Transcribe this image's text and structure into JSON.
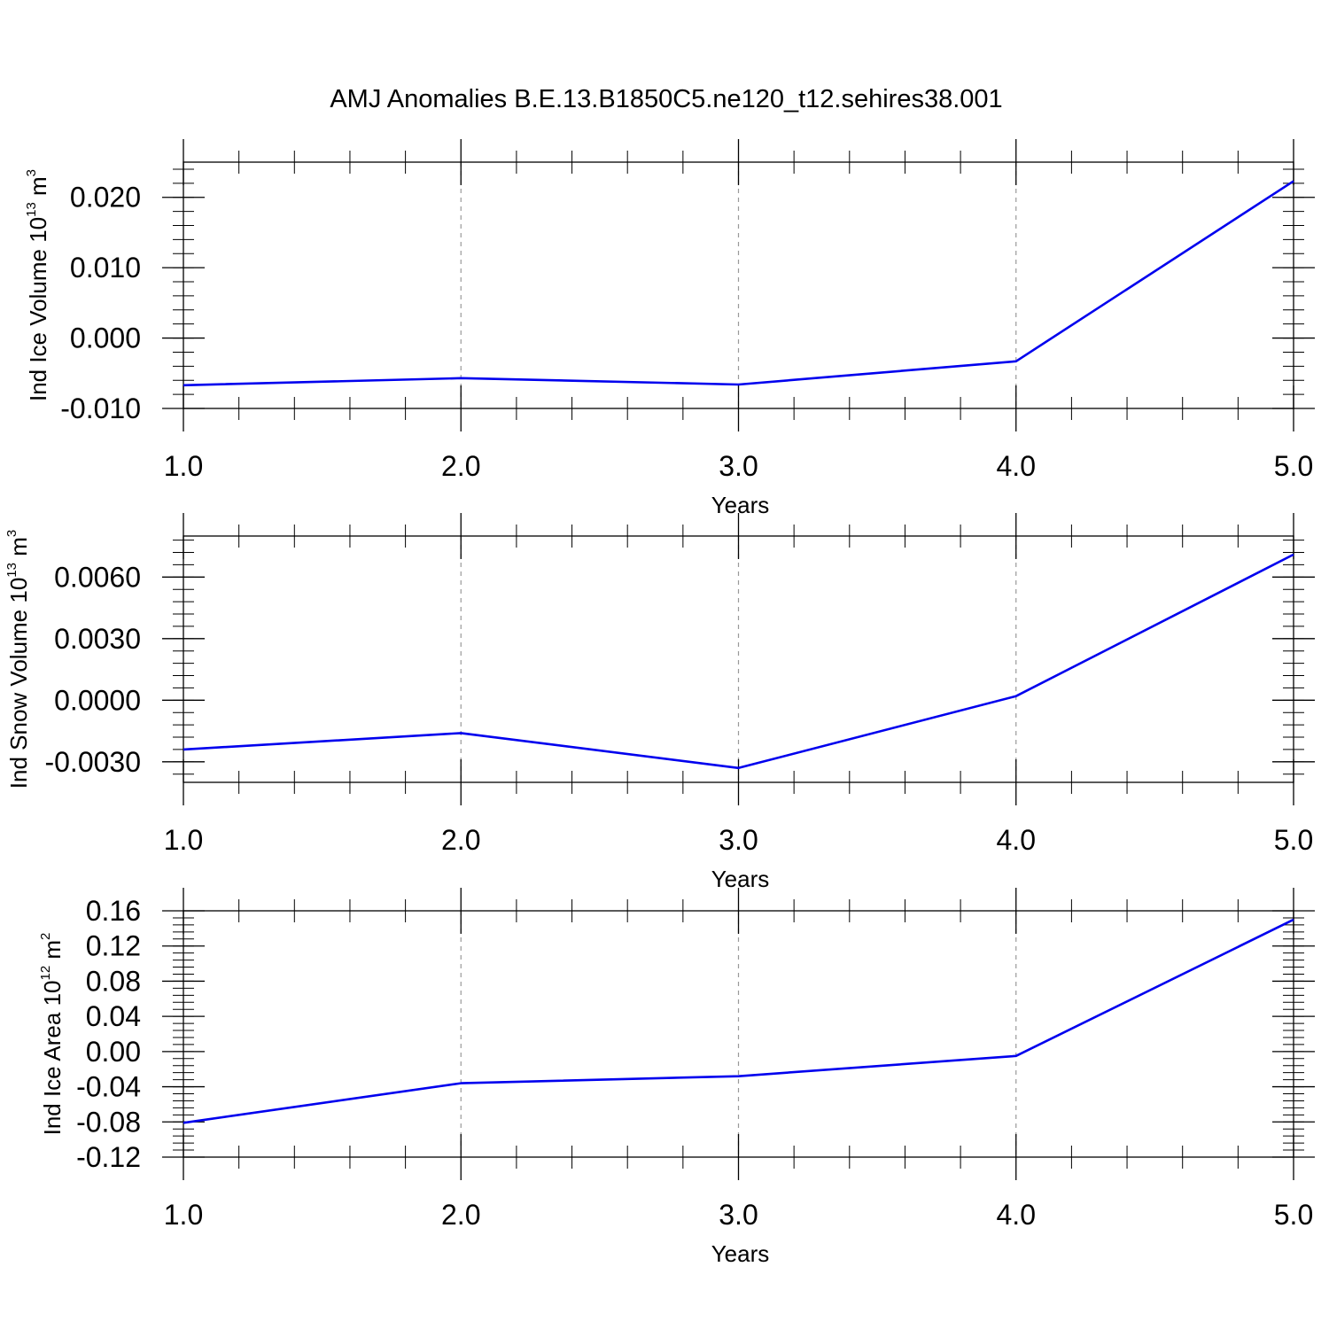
{
  "figure": {
    "title": "AMJ Anomalies B.E.13.B1850C5.ne120_t12.sehires38.001"
  },
  "colors": {
    "line": "#0000ee",
    "frame": "#000000",
    "gridline": "#999999"
  },
  "chart_data": [
    {
      "type": "line",
      "title": "",
      "xlabel": "Years",
      "ylabel": {
        "base": "Ind Ice Volume 10",
        "exp": "13",
        "unit": " m",
        "unit_exp": "3"
      },
      "x": [
        1,
        2,
        3,
        4,
        5
      ],
      "x_ticks": [
        "1.0",
        "2.0",
        "3.0",
        "4.0",
        "5.0"
      ],
      "xlim": [
        1,
        5
      ],
      "ylim": [
        -0.01,
        0.025
      ],
      "y_ticks": [
        {
          "value": -0.01,
          "label": "-0.010"
        },
        {
          "value": 0.0,
          "label": "0.000"
        },
        {
          "value": 0.01,
          "label": "0.010"
        },
        {
          "value": 0.02,
          "label": "0.020"
        }
      ],
      "y_minor_step": 0.002,
      "grid": "vertical-dashed",
      "series": [
        {
          "values": [
            -0.0067,
            -0.0057,
            -0.0066,
            -0.0033,
            0.0223
          ]
        }
      ]
    },
    {
      "type": "line",
      "title": "",
      "xlabel": "Years",
      "ylabel": {
        "base": "Ind Snow Volume 10",
        "exp": "13",
        "unit": " m",
        "unit_exp": "3"
      },
      "x": [
        1,
        2,
        3,
        4,
        5
      ],
      "x_ticks": [
        "1.0",
        "2.0",
        "3.0",
        "4.0",
        "5.0"
      ],
      "xlim": [
        1,
        5
      ],
      "ylim": [
        -0.004,
        0.008
      ],
      "y_ticks": [
        {
          "value": -0.003,
          "label": "-0.0030"
        },
        {
          "value": 0.0,
          "label": "0.0000"
        },
        {
          "value": 0.003,
          "label": "0.0030"
        },
        {
          "value": 0.006,
          "label": "0.0060"
        }
      ],
      "y_minor_step": 0.0006,
      "grid": "vertical-dashed",
      "series": [
        {
          "values": [
            -0.0024,
            -0.0016,
            -0.0033,
            0.0002,
            0.0071
          ]
        }
      ]
    },
    {
      "type": "line",
      "title": "",
      "xlabel": "Years",
      "ylabel": {
        "base": "Ind Ice Area 10",
        "exp": "12",
        "unit": " m",
        "unit_exp": "2"
      },
      "x": [
        1,
        2,
        3,
        4,
        5
      ],
      "x_ticks": [
        "1.0",
        "2.0",
        "3.0",
        "4.0",
        "5.0"
      ],
      "xlim": [
        1,
        5
      ],
      "ylim": [
        -0.12,
        0.16
      ],
      "y_ticks": [
        {
          "value": -0.12,
          "label": "-0.12"
        },
        {
          "value": -0.08,
          "label": "-0.08"
        },
        {
          "value": -0.04,
          "label": "-0.04"
        },
        {
          "value": 0.0,
          "label": "0.00"
        },
        {
          "value": 0.04,
          "label": "0.04"
        },
        {
          "value": 0.08,
          "label": "0.08"
        },
        {
          "value": 0.12,
          "label": "0.12"
        },
        {
          "value": 0.16,
          "label": "0.16"
        }
      ],
      "y_minor_step": 0.008,
      "grid": "vertical-dashed",
      "series": [
        {
          "values": [
            -0.081,
            -0.036,
            -0.028,
            -0.005,
            0.15
          ]
        }
      ]
    }
  ]
}
